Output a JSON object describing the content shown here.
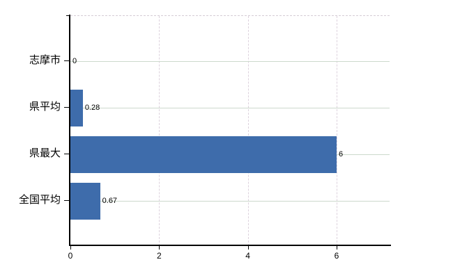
{
  "chart_data": {
    "type": "bar",
    "orientation": "horizontal",
    "title": "",
    "categories": [
      "志摩市",
      "県平均",
      "県最大",
      "全国平均"
    ],
    "values": [
      0,
      0.28,
      6,
      0.67
    ],
    "value_labels": [
      "0",
      "0.28",
      "6",
      "0.67"
    ],
    "x_tick_labels": [
      "0",
      "2",
      "4",
      "6"
    ],
    "x_tick_values": [
      0,
      2,
      4,
      6
    ],
    "xlim": [
      0,
      7.2
    ],
    "grid": true,
    "legend": "none",
    "series_name": ""
  },
  "colors": {
    "bar": "#3e6cab",
    "axis": "#000000",
    "h_gridline": "#ccd9cc",
    "v_gridline": "#ddd2dd",
    "plot_border": "#d5ccd5",
    "text": "#000000",
    "background": "#ffffff"
  }
}
